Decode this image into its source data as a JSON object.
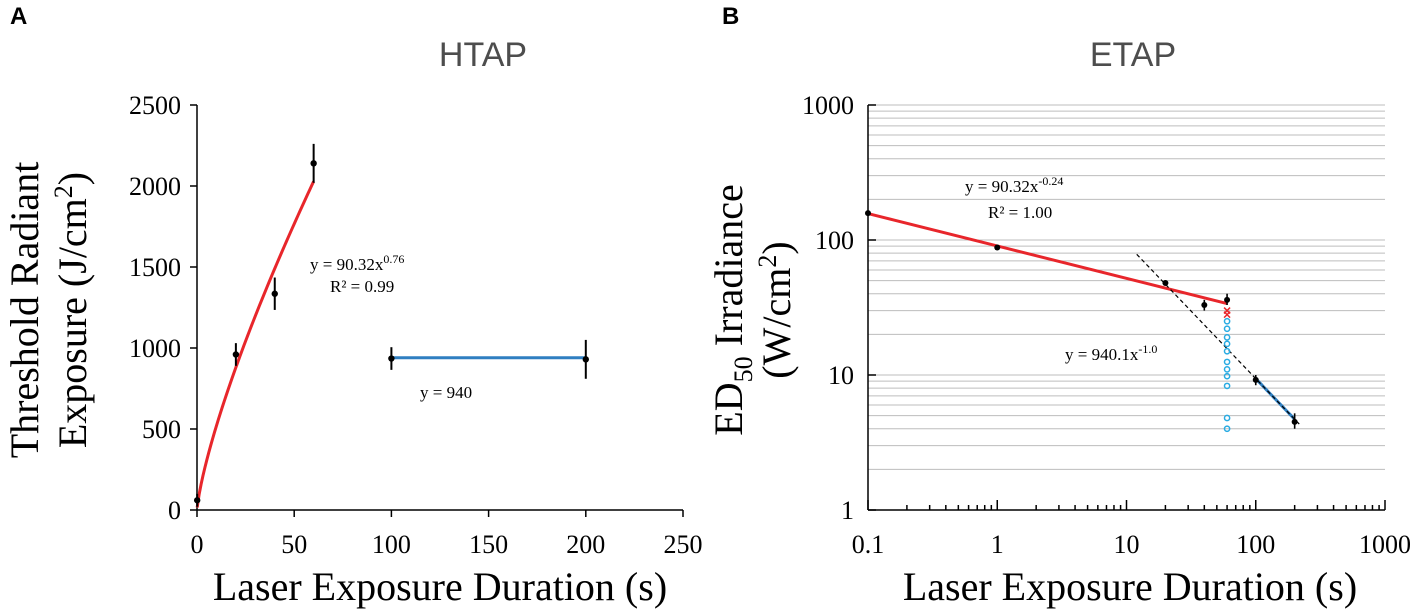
{
  "chart_data": [
    {
      "type": "scatter",
      "panel_label": "A",
      "title": "HTAP",
      "xlabel": "Laser Exposure Duration (s)",
      "ylabel_line1": "Threshold  Radiant",
      "ylabel_line2_prefix": "Exposure (J/cm",
      "ylabel_line2_sup": "2",
      "ylabel_line2_suffix": ")",
      "xlim": [
        0,
        250
      ],
      "ylim": [
        0,
        2500
      ],
      "xticks": [
        0,
        50,
        100,
        150,
        200,
        250
      ],
      "yticks": [
        0,
        500,
        1000,
        1500,
        2000,
        2500
      ],
      "grid": false,
      "series": [
        {
          "name": "HTAP measured",
          "color": "#000000",
          "points": [
            {
              "x": 0.1,
              "y": 60,
              "err": 40
            },
            {
              "x": 20,
              "y": 960,
              "err": 70
            },
            {
              "x": 40,
              "y": 1335,
              "err": 100
            },
            {
              "x": 60,
              "y": 2140,
              "err": 120
            },
            {
              "x": 100,
              "y": 935,
              "err": 70
            },
            {
              "x": 200,
              "y": 930,
              "err": 120
            }
          ]
        }
      ],
      "fits": [
        {
          "name": "power fit",
          "color": "#e8262b",
          "kind": "power",
          "a": 90.32,
          "b": 0.76,
          "x_range": [
            0.1,
            60
          ],
          "label": "y = 90.32x",
          "exponent": "0.76",
          "r2": "R² = 0.99"
        },
        {
          "name": "constant fit",
          "color": "#2f7fc1",
          "kind": "const",
          "value": 940,
          "x_range": [
            100,
            200
          ],
          "label": "y = 940"
        }
      ]
    },
    {
      "type": "scatter",
      "panel_label": "B",
      "title": "ETAP",
      "xlabel": "Laser Exposure Duration (s)",
      "ylabel_line1_prefix": "ED",
      "ylabel_line1_sub": "50",
      "ylabel_line1_suffix": " Irradiance",
      "ylabel_line2_prefix": "(W/cm",
      "ylabel_line2_sup": "2",
      "ylabel_line2_suffix": ")",
      "xscale": "log",
      "yscale": "log",
      "xlim": [
        0.1,
        1000
      ],
      "ylim": [
        1,
        1000
      ],
      "xticks": [
        0.1,
        1,
        10,
        100,
        1000
      ],
      "xtick_labels": [
        "0.1",
        "1",
        "10",
        "100",
        "1000"
      ],
      "yticks": [
        1,
        10,
        100,
        1000
      ],
      "ytick_labels": [
        "1",
        "10",
        "100",
        "1000"
      ],
      "grid": true,
      "series": [
        {
          "name": "ETAP measured",
          "color": "#000000",
          "points": [
            {
              "x": 0.1,
              "y": 158
            },
            {
              "x": 1,
              "y": 88
            },
            {
              "x": 20,
              "y": 48
            },
            {
              "x": 40,
              "y": 33,
              "err_up": 3,
              "err_dn": 3
            },
            {
              "x": 60,
              "y": 36,
              "err_up": 4,
              "err_dn": 3
            },
            {
              "x": 100,
              "y": 9.2,
              "err_up": 0.8,
              "err_dn": 0.8
            },
            {
              "x": 200,
              "y": 4.5,
              "err_up": 0.7,
              "err_dn": 0.5
            }
          ]
        },
        {
          "name": "ETAP individual (cyan)",
          "color": "#29abe2",
          "marker": "open-circle",
          "points": [
            {
              "x": 60,
              "y": 25
            },
            {
              "x": 60,
              "y": 22
            },
            {
              "x": 60,
              "y": 19
            },
            {
              "x": 60,
              "y": 17
            },
            {
              "x": 60,
              "y": 15
            },
            {
              "x": 60,
              "y": 12.5
            },
            {
              "x": 60,
              "y": 11
            },
            {
              "x": 60,
              "y": 9.8
            },
            {
              "x": 60,
              "y": 8.3
            },
            {
              "x": 60,
              "y": 4.8
            },
            {
              "x": 60,
              "y": 4.0
            }
          ]
        },
        {
          "name": "ETAP individual (red x)",
          "color": "#e8262b",
          "marker": "x",
          "points": [
            {
              "x": 60,
              "y": 30
            },
            {
              "x": 60,
              "y": 28
            }
          ]
        }
      ],
      "fits": [
        {
          "name": "power fit red",
          "color": "#e8262b",
          "kind": "power",
          "a": 90.32,
          "b": -0.24,
          "x_range": [
            0.1,
            60
          ],
          "label": "y = 90.32x",
          "exponent": "-0.24",
          "r2": "R² = 1.00"
        },
        {
          "name": "power fit blue",
          "color": "#2f7fc1",
          "kind": "power",
          "a": 940.1,
          "b": -1.0,
          "x_range": [
            100,
            200
          ]
        },
        {
          "name": "dashed fit",
          "color": "#000000",
          "kind": "power",
          "dashed": true,
          "a": 940.1,
          "b": -1.0,
          "x_range": [
            12,
            220
          ],
          "label": "y = 940.1x",
          "exponent": "-1.0"
        }
      ]
    }
  ]
}
